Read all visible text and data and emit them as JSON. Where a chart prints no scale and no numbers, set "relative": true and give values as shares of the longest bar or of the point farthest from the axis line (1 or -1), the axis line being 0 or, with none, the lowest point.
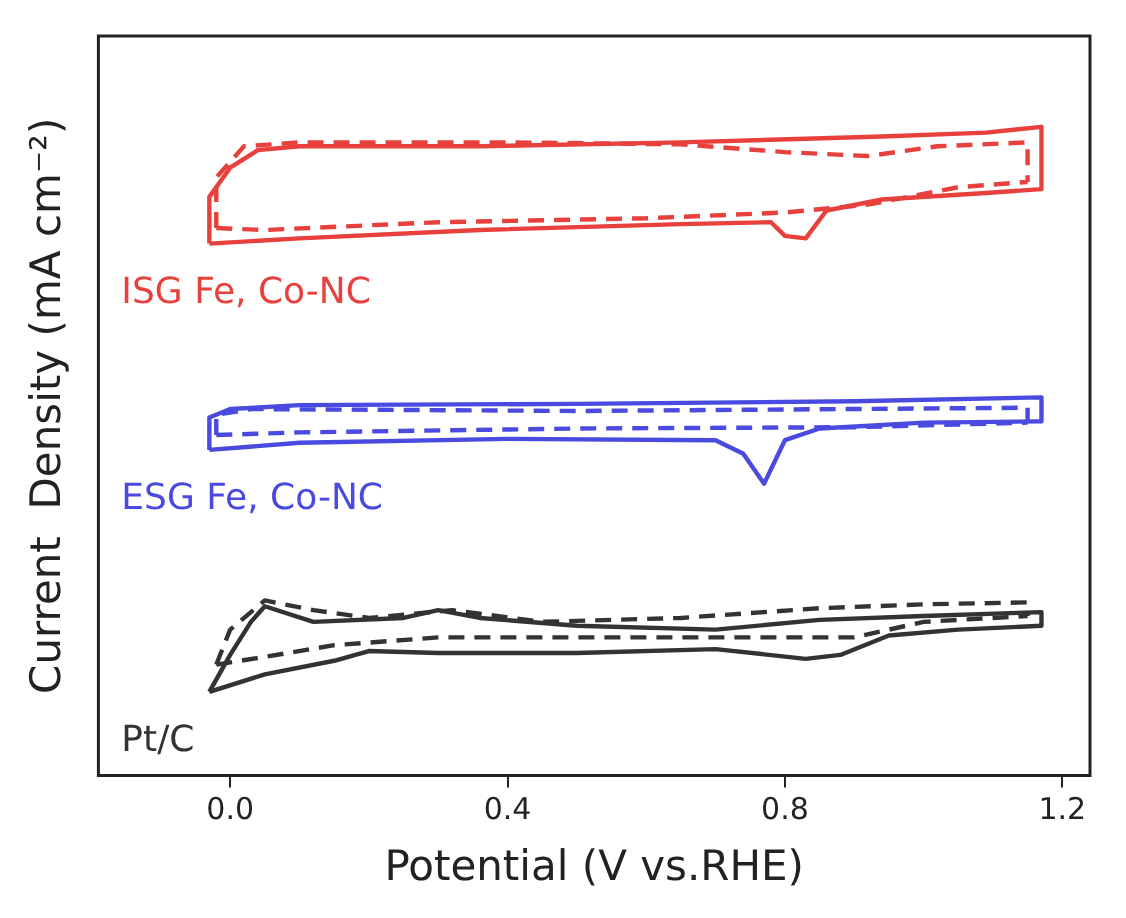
{
  "chart_data": {
    "type": "line",
    "relative": true,
    "xlabel": "Potential (V vs.RHE)",
    "ylabel": "Current  Density (mA cm⁻²)",
    "xlim": [
      -0.19,
      1.24
    ],
    "xticks": [
      {
        "value": 0,
        "label": "0.0"
      },
      {
        "value": 0.4,
        "label": "0.4"
      },
      {
        "value": 0.8,
        "label": "0.8"
      },
      {
        "value": 1.2,
        "label": "1.2"
      }
    ],
    "grid": false,
    "legend": false,
    "marker": "none",
    "series": [
      {
        "name": "ISG Fe, Co-NC",
        "color": "#e8413d",
        "line_style": "solid",
        "x": [
          -0.03,
          -0.03,
          0.0,
          0.04,
          0.1,
          0.36,
          0.65,
          0.94,
          1.09,
          1.17,
          1.17
        ],
        "values": [
          0.82,
          0.892,
          0.937,
          0.964,
          0.97,
          0.97,
          0.976,
          0.985,
          0.991,
          1.0,
          0.904
        ]
      },
      {
        "color": "#e8413d",
        "line_style": "solid",
        "x": [
          -0.03,
          0.1,
          0.36,
          0.65,
          0.78,
          0.8,
          0.83,
          0.86,
          0.94,
          1.09,
          1.17
        ],
        "values": [
          0.82,
          0.828,
          0.841,
          0.85,
          0.853,
          0.832,
          0.828,
          0.871,
          0.888,
          0.898,
          0.904
        ]
      },
      {
        "color": "#e8413d",
        "line_style": "dashed",
        "x": [
          -0.02,
          -0.02,
          0.02,
          0.1,
          0.4,
          0.65,
          0.8,
          0.92,
          1.02,
          1.15,
          1.15
        ],
        "values": [
          0.844,
          0.922,
          0.97,
          0.976,
          0.976,
          0.973,
          0.961,
          0.955,
          0.97,
          0.976,
          0.915
        ]
      },
      {
        "color": "#e8413d",
        "line_style": "dashed",
        "x": [
          -0.02,
          0.05,
          0.3,
          0.6,
          0.8,
          0.92,
          1.05,
          1.15
        ],
        "values": [
          0.844,
          0.841,
          0.853,
          0.859,
          0.868,
          0.88,
          0.907,
          0.915
        ]
      },
      {
        "name": "ESG Fe, Co-NC",
        "color": "#4a4ae0",
        "line_style": "solid",
        "x": [
          -0.03,
          -0.03,
          0.0,
          0.1,
          0.5,
          0.9,
          1.17,
          1.17
        ],
        "values": [
          0.502,
          0.552,
          0.565,
          0.571,
          0.573,
          0.577,
          0.583,
          0.546
        ]
      },
      {
        "color": "#4a4ae0",
        "line_style": "solid",
        "x": [
          -0.03,
          0.1,
          0.4,
          0.7,
          0.74,
          0.77,
          0.8,
          0.85,
          1.0,
          1.17
        ],
        "values": [
          0.502,
          0.513,
          0.519,
          0.517,
          0.496,
          0.45,
          0.517,
          0.535,
          0.544,
          0.546
        ]
      },
      {
        "color": "#4a4ae0",
        "line_style": "dashed",
        "x": [
          -0.02,
          -0.02,
          0.03,
          0.5,
          1.15,
          1.15
        ],
        "values": [
          0.525,
          0.556,
          0.565,
          0.562,
          0.567,
          0.544
        ]
      },
      {
        "color": "#4a4ae0",
        "line_style": "dashed",
        "x": [
          -0.02,
          0.1,
          0.5,
          0.9,
          1.15
        ],
        "values": [
          0.525,
          0.529,
          0.535,
          0.537,
          0.544
        ]
      },
      {
        "name": "Pt/C",
        "color": "#333333",
        "line_style": "solid",
        "x": [
          -0.03,
          0.0,
          0.03,
          0.05,
          0.12,
          0.25,
          0.3,
          0.36,
          0.5,
          0.7,
          0.85,
          1.0,
          1.17,
          1.17
        ],
        "values": [
          0.129,
          0.186,
          0.237,
          0.261,
          0.237,
          0.243,
          0.255,
          0.243,
          0.231,
          0.225,
          0.24,
          0.246,
          0.252,
          0.231
        ]
      },
      {
        "color": "#333333",
        "line_style": "solid",
        "x": [
          -0.03,
          0.05,
          0.15,
          0.2,
          0.3,
          0.5,
          0.7,
          0.83,
          0.88,
          0.95,
          1.05,
          1.17
        ],
        "values": [
          0.129,
          0.156,
          0.177,
          0.192,
          0.189,
          0.189,
          0.195,
          0.18,
          0.186,
          0.216,
          0.225,
          0.231
        ]
      },
      {
        "color": "#333333",
        "line_style": "dashed",
        "x": [
          -0.02,
          0.0,
          0.05,
          0.12,
          0.2,
          0.32,
          0.45,
          0.65,
          0.85,
          1.0,
          1.15,
          1.15
        ],
        "values": [
          0.171,
          0.225,
          0.27,
          0.255,
          0.243,
          0.255,
          0.237,
          0.243,
          0.258,
          0.264,
          0.267,
          0.246
        ]
      },
      {
        "color": "#333333",
        "line_style": "dashed",
        "x": [
          -0.02,
          0.05,
          0.15,
          0.3,
          0.6,
          0.9,
          1.0,
          1.15
        ],
        "values": [
          0.171,
          0.183,
          0.201,
          0.213,
          0.213,
          0.213,
          0.237,
          0.246
        ]
      }
    ]
  }
}
